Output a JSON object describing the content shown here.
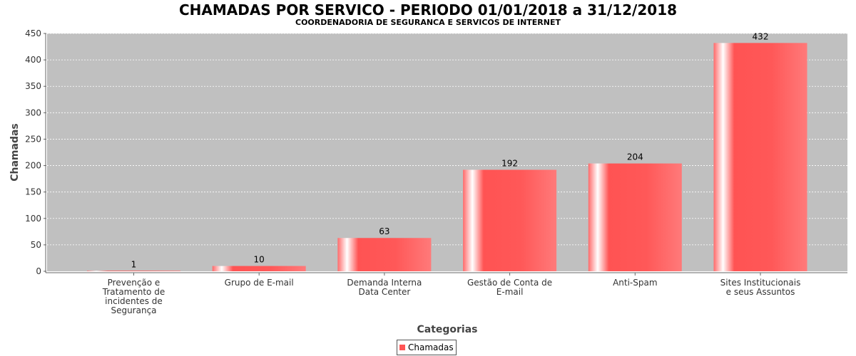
{
  "chart_data": {
    "type": "bar",
    "title": "CHAMADAS POR SERVICO - PERIODO 01/01/2018 a 31/12/2018",
    "subtitle": "COORDENADORIA DE SEGURANCA E SERVICOS DE INTERNET",
    "xlabel": "Categorias",
    "ylabel": "Chamadas",
    "ylim": [
      0,
      450
    ],
    "yticks": [
      0,
      50,
      100,
      150,
      200,
      250,
      300,
      350,
      400,
      450
    ],
    "categories": [
      [
        "Prevenção e",
        "Tratamento de",
        "incidentes de",
        "Segurança"
      ],
      [
        "Grupo de E-mail"
      ],
      [
        "Demanda Interna",
        "Data Center"
      ],
      [
        "Gestão de Conta de",
        "E-mail"
      ],
      [
        "Anti-Spam"
      ],
      [
        "Sites Institucionais",
        "e seus Assuntos"
      ]
    ],
    "series": [
      {
        "name": "Chamadas",
        "values": [
          1,
          10,
          63,
          192,
          204,
          432
        ],
        "color": "#ff5555"
      }
    ],
    "grid": true,
    "legend_position": "bottom-center",
    "plot_background": "#c0c0c0"
  }
}
